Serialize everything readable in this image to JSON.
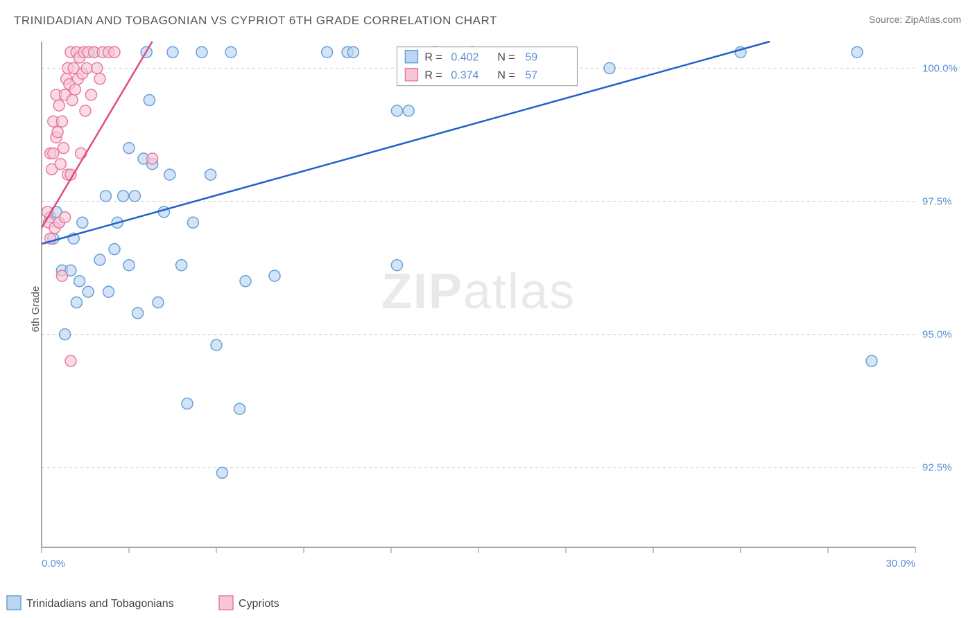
{
  "title": "TRINIDADIAN AND TOBAGONIAN VS CYPRIOT 6TH GRADE CORRELATION CHART",
  "source_label": "Source: ",
  "source_link": "ZipAtlas.com",
  "y_axis_label": "6th Grade",
  "watermark": {
    "bold": "ZIP",
    "light": "atlas"
  },
  "chart": {
    "type": "scatter",
    "xlim": [
      0,
      30
    ],
    "ylim": [
      91,
      100.5
    ],
    "x_ticks": [
      0,
      3,
      6,
      9,
      12,
      15,
      18,
      21,
      24,
      27,
      30
    ],
    "x_tick_labels_visible": {
      "0": "0.0%",
      "30": "30.0%"
    },
    "y_ticks": [
      92.5,
      95.0,
      97.5,
      100.0
    ],
    "y_tick_labels": [
      "92.5%",
      "95.0%",
      "97.5%",
      "100.0%"
    ],
    "grid_color": "#cccccc",
    "background": "#ffffff",
    "marker_radius": 8,
    "marker_stroke_width": 1.5,
    "series": [
      {
        "name": "Trinidadians and Tobagonians",
        "fill": "#bcd6f2",
        "stroke": "#6a9fd8",
        "line_color": "#1e62c9",
        "line_width": 2.5,
        "R": "0.402",
        "N": "59",
        "trend": {
          "x1": 0,
          "y1": 96.7,
          "x2": 25,
          "y2": 100.5
        },
        "points": [
          [
            0.3,
            97.2
          ],
          [
            0.4,
            96.8
          ],
          [
            0.5,
            97.3
          ],
          [
            0.6,
            97.1
          ],
          [
            0.7,
            96.2
          ],
          [
            0.8,
            95.0
          ],
          [
            1.0,
            96.2
          ],
          [
            1.1,
            96.8
          ],
          [
            1.2,
            95.6
          ],
          [
            1.3,
            96.0
          ],
          [
            1.4,
            97.1
          ],
          [
            1.6,
            95.8
          ],
          [
            1.8,
            100.3
          ],
          [
            2.0,
            96.4
          ],
          [
            2.2,
            97.6
          ],
          [
            2.3,
            95.8
          ],
          [
            2.5,
            96.6
          ],
          [
            2.6,
            97.1
          ],
          [
            2.8,
            97.6
          ],
          [
            3.0,
            96.3
          ],
          [
            3.0,
            98.5
          ],
          [
            3.2,
            97.6
          ],
          [
            3.3,
            95.4
          ],
          [
            3.5,
            98.3
          ],
          [
            3.6,
            100.3
          ],
          [
            3.7,
            99.4
          ],
          [
            3.8,
            98.2
          ],
          [
            4.0,
            95.6
          ],
          [
            4.2,
            97.3
          ],
          [
            4.4,
            98.0
          ],
          [
            4.5,
            100.3
          ],
          [
            4.8,
            96.3
          ],
          [
            5.0,
            93.7
          ],
          [
            5.2,
            97.1
          ],
          [
            5.5,
            100.3
          ],
          [
            5.8,
            98.0
          ],
          [
            6.0,
            94.8
          ],
          [
            6.2,
            92.4
          ],
          [
            6.5,
            100.3
          ],
          [
            6.8,
            93.6
          ],
          [
            7.0,
            96.0
          ],
          [
            8.0,
            96.1
          ],
          [
            9.8,
            100.3
          ],
          [
            10.5,
            100.3
          ],
          [
            10.7,
            100.3
          ],
          [
            12.2,
            99.2
          ],
          [
            12.6,
            99.2
          ],
          [
            12.2,
            96.3
          ],
          [
            13.5,
            100.3
          ],
          [
            14.8,
            100.3
          ],
          [
            19.5,
            100.0
          ],
          [
            24.0,
            100.3
          ],
          [
            28.0,
            100.3
          ],
          [
            28.5,
            94.5
          ]
        ]
      },
      {
        "name": "Cypriots",
        "fill": "#f7c6d5",
        "stroke": "#e77aa0",
        "line_color": "#e04a82",
        "line_width": 2.5,
        "R": "0.374",
        "N": "57",
        "trend": {
          "x1": 0,
          "y1": 97.0,
          "x2": 3.8,
          "y2": 100.5
        },
        "points": [
          [
            0.2,
            97.3
          ],
          [
            0.25,
            97.1
          ],
          [
            0.3,
            96.8
          ],
          [
            0.3,
            98.4
          ],
          [
            0.35,
            98.1
          ],
          [
            0.4,
            98.4
          ],
          [
            0.4,
            99.0
          ],
          [
            0.45,
            97.0
          ],
          [
            0.5,
            98.7
          ],
          [
            0.5,
            99.5
          ],
          [
            0.55,
            98.8
          ],
          [
            0.6,
            97.1
          ],
          [
            0.6,
            99.3
          ],
          [
            0.65,
            98.2
          ],
          [
            0.7,
            96.1
          ],
          [
            0.7,
            99.0
          ],
          [
            0.75,
            98.5
          ],
          [
            0.8,
            97.2
          ],
          [
            0.8,
            99.5
          ],
          [
            0.85,
            99.8
          ],
          [
            0.9,
            98.0
          ],
          [
            0.9,
            100.0
          ],
          [
            0.95,
            99.7
          ],
          [
            1.0,
            98.0
          ],
          [
            1.0,
            100.3
          ],
          [
            1.05,
            99.4
          ],
          [
            1.1,
            100.0
          ],
          [
            1.15,
            99.6
          ],
          [
            1.2,
            100.3
          ],
          [
            1.25,
            99.8
          ],
          [
            1.3,
            100.2
          ],
          [
            1.35,
            98.4
          ],
          [
            1.4,
            99.9
          ],
          [
            1.45,
            100.3
          ],
          [
            1.5,
            99.2
          ],
          [
            1.55,
            100.0
          ],
          [
            1.6,
            100.3
          ],
          [
            1.7,
            99.5
          ],
          [
            1.8,
            100.3
          ],
          [
            1.9,
            100.0
          ],
          [
            2.0,
            99.8
          ],
          [
            2.1,
            100.3
          ],
          [
            2.3,
            100.3
          ],
          [
            2.5,
            100.3
          ],
          [
            1.0,
            94.5
          ],
          [
            3.8,
            98.3
          ]
        ]
      }
    ],
    "stats_legend": {
      "R_label": "R =",
      "N_label": "N ="
    },
    "bottom_legend": [
      {
        "label": "Trinidadians and Tobagonians",
        "fill": "#bcd6f2",
        "stroke": "#6a9fd8"
      },
      {
        "label": "Cypriots",
        "fill": "#f7c6d5",
        "stroke": "#e77aa0"
      }
    ]
  }
}
